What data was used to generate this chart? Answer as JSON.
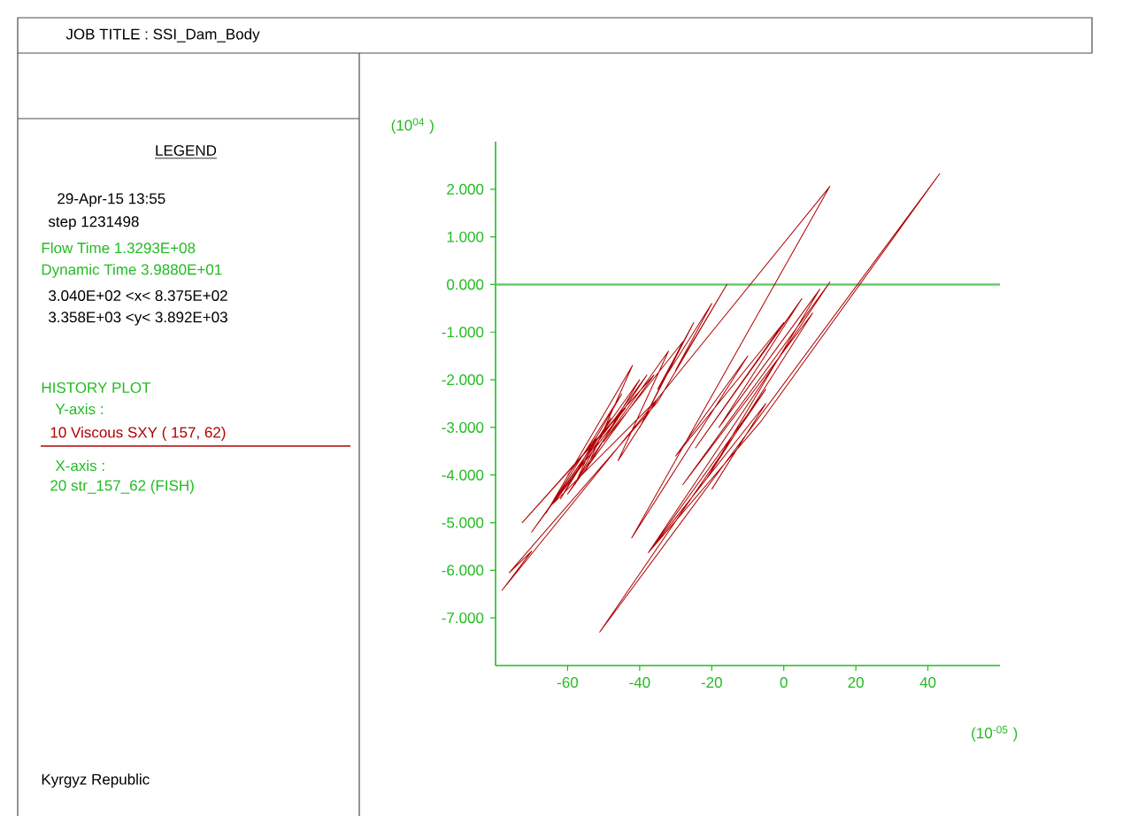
{
  "chart_data": {
    "type": "line",
    "title": "JOB TITLE : SSI_Dam_Body",
    "xlabel": "(10$^{-05}$ )",
    "ylabel": "(10$^{04}$ )",
    "annotations": [
      "LEGEND",
      "29-Apr-15 13:55",
      "step 1231498",
      "Flow Time 1.3293E+08",
      "Dynamic Time 3.9880E+01",
      "3.040E+02 <x< 8.375E+02",
      "3.358E+03 <y< 3.892E+03",
      "HISTORY PLOT",
      "Y-axis :",
      "X-axis :",
      "20 str_157_62 (FISH)",
      "Kyrgyz Republic"
    ],
    "xlim": [
      -80,
      60
    ],
    "ylim": [
      -8,
      3
    ],
    "xticks": [
      -60,
      -40,
      -20,
      0,
      20,
      40
    ],
    "yticks": [
      {
        "value": 2,
        "label": "2.000"
      },
      {
        "value": 1,
        "label": "1.000"
      },
      {
        "value": 0,
        "label": "0.000"
      },
      {
        "value": -1,
        "label": "-1.000"
      },
      {
        "value": -2,
        "label": "-2.000"
      },
      {
        "value": -3,
        "label": "-3.000"
      },
      {
        "value": -4,
        "label": "-4.000"
      },
      {
        "value": -5,
        "label": "-5.000"
      },
      {
        "value": -6,
        "label": "-6.000"
      },
      {
        "value": -7,
        "label": "-7.000"
      }
    ],
    "ref_lines": [
      {
        "axis": "y",
        "value": 0,
        "color": "#66cc66"
      }
    ],
    "legend": "left",
    "grid": false,
    "marker": "none",
    "line_style": "solid",
    "series": [
      {
        "name": "10 Viscous SXY ( 157, 62)",
        "color": "#b00000",
        "x": [
          -60,
          -52,
          -58,
          -48,
          -62,
          -45,
          -66,
          -42,
          -55,
          -40,
          -70,
          -38,
          -60,
          -36,
          -72.6,
          -44,
          -64,
          -35,
          -46,
          -32,
          -50,
          -28,
          -40,
          -25,
          -35,
          -20,
          -30,
          -15.8,
          -35.1,
          -76.2,
          -70,
          -78.2,
          12.8,
          -42.2,
          -10,
          -30,
          0,
          -24.5,
          5,
          -18,
          10,
          -21.2,
          8,
          -28,
          12.8,
          -37.6,
          -5,
          -51.1,
          43.3,
          -6.4,
          -37.6,
          -5,
          -20
        ],
        "values": [
          -4.0,
          -3.2,
          -4.2,
          -2.8,
          -4.5,
          -2.3,
          -4.8,
          -1.7,
          -3.9,
          -2.0,
          -5.2,
          -1.9,
          -4.4,
          -1.9,
          -5.0,
          -2.6,
          -4.6,
          -2.4,
          -3.7,
          -1.4,
          -3.3,
          -1.2,
          -3.0,
          -0.8,
          -2.2,
          -0.4,
          -1.8,
          0,
          -2.47,
          -6.05,
          -5.6,
          -6.42,
          2.06,
          -5.32,
          -1.5,
          -3.6,
          -0.8,
          -3.43,
          -0.3,
          -3.0,
          -0.1,
          -4.05,
          -0.6,
          -4.2,
          0.05,
          -5.63,
          -2.2,
          -7.3,
          2.33,
          -2.88,
          -5.63,
          -2.5,
          -4.3
        ]
      }
    ]
  }
}
